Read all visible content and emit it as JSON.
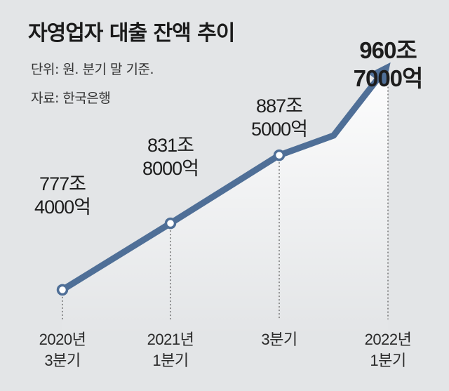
{
  "title": "자영업자 대출 잔액 추이",
  "unit": "단위: 원. 분기 말 기준.",
  "source": "자료: 한국은행",
  "colors": {
    "line": "#4f6f97",
    "text": "#222222",
    "background": "#e3e5e7"
  },
  "chart_data": {
    "type": "line",
    "x": [
      "2020년 3분기",
      "2021년 1분기",
      "3분기",
      "2022년 1분기"
    ],
    "x_tick_labels": [
      [
        "2020년",
        "3분기"
      ],
      [
        "2021년",
        "1분기"
      ],
      [
        "3분기"
      ],
      [
        "2022년",
        "1분기"
      ]
    ],
    "series": [
      {
        "values": [
          7774000,
          8318000,
          8875000,
          9607000
        ]
      }
    ],
    "value_unit": "억원",
    "data_labels": [
      [
        "777조",
        "4000억"
      ],
      [
        "831조",
        "8000억"
      ],
      [
        "887조",
        "5000억"
      ],
      [
        "960조",
        "7000억"
      ]
    ],
    "highlight_last": true,
    "grid": false,
    "legend": "none",
    "ylim": [
      7400000,
      9800000
    ]
  }
}
